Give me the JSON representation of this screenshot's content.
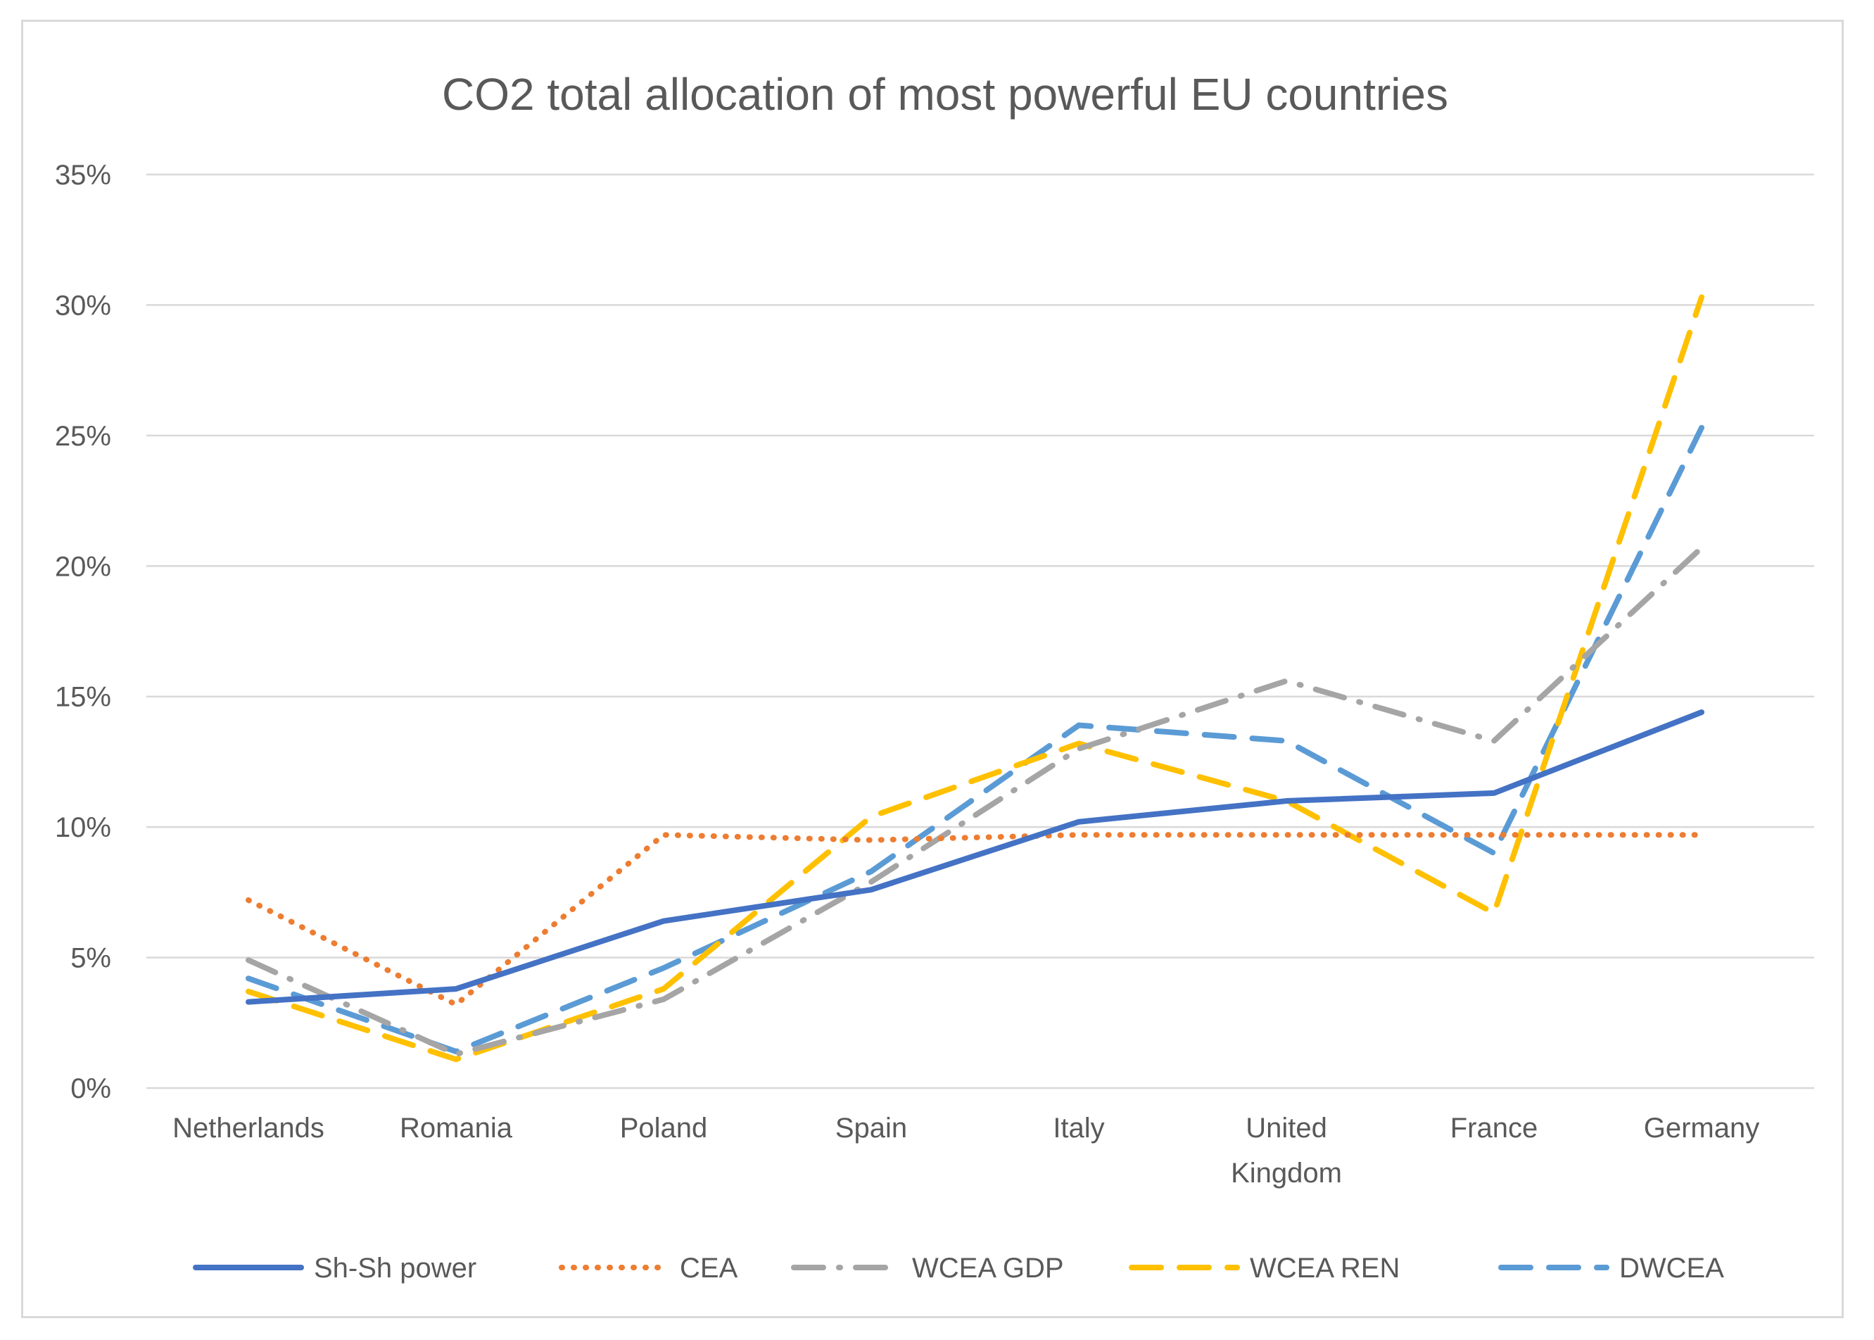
{
  "chart_data": {
    "type": "line",
    "title": "CO2 total allocation of most powerful EU countries",
    "xlabel": "",
    "ylabel": "",
    "categories": [
      "Netherlands",
      "Romania",
      "Poland",
      "Spain",
      "Italy",
      "United Kingdom",
      "France",
      "Germany"
    ],
    "category_lines": [
      [
        "Netherlands"
      ],
      [
        "Romania"
      ],
      [
        "Poland"
      ],
      [
        "Spain"
      ],
      [
        "Italy"
      ],
      [
        "United",
        "Kingdom"
      ],
      [
        "France"
      ],
      [
        "Germany"
      ]
    ],
    "ylim": [
      0,
      35
    ],
    "yticks": [
      0,
      5,
      10,
      15,
      20,
      25,
      30,
      35
    ],
    "ytick_labels": [
      "0%",
      "5%",
      "10%",
      "15%",
      "20%",
      "25%",
      "30%",
      "35%"
    ],
    "grid": true,
    "legend_position": "bottom",
    "series": [
      {
        "name": "Sh-Sh power",
        "color": "#4472c4",
        "style": "solid",
        "values": [
          3.3,
          3.8,
          6.4,
          7.6,
          10.2,
          11.0,
          11.3,
          14.4
        ]
      },
      {
        "name": "CEA",
        "color": "#ed7d31",
        "style": "dot",
        "values": [
          7.2,
          3.2,
          9.7,
          9.5,
          9.7,
          9.7,
          9.7,
          9.7
        ]
      },
      {
        "name": "WCEA GDP",
        "color": "#a5a5a5",
        "style": "dashdot",
        "values": [
          4.9,
          1.3,
          3.4,
          7.9,
          13.0,
          15.6,
          13.3,
          20.7
        ]
      },
      {
        "name": "WCEA REN",
        "color": "#ffc000",
        "style": "dash",
        "values": [
          3.7,
          1.1,
          3.8,
          10.4,
          13.2,
          11.0,
          6.7,
          30.3
        ]
      },
      {
        "name": "DWCEA",
        "color": "#5b9bd5",
        "style": "dash",
        "values": [
          4.2,
          1.4,
          4.6,
          8.3,
          13.9,
          13.3,
          9.0,
          25.3
        ]
      }
    ]
  }
}
